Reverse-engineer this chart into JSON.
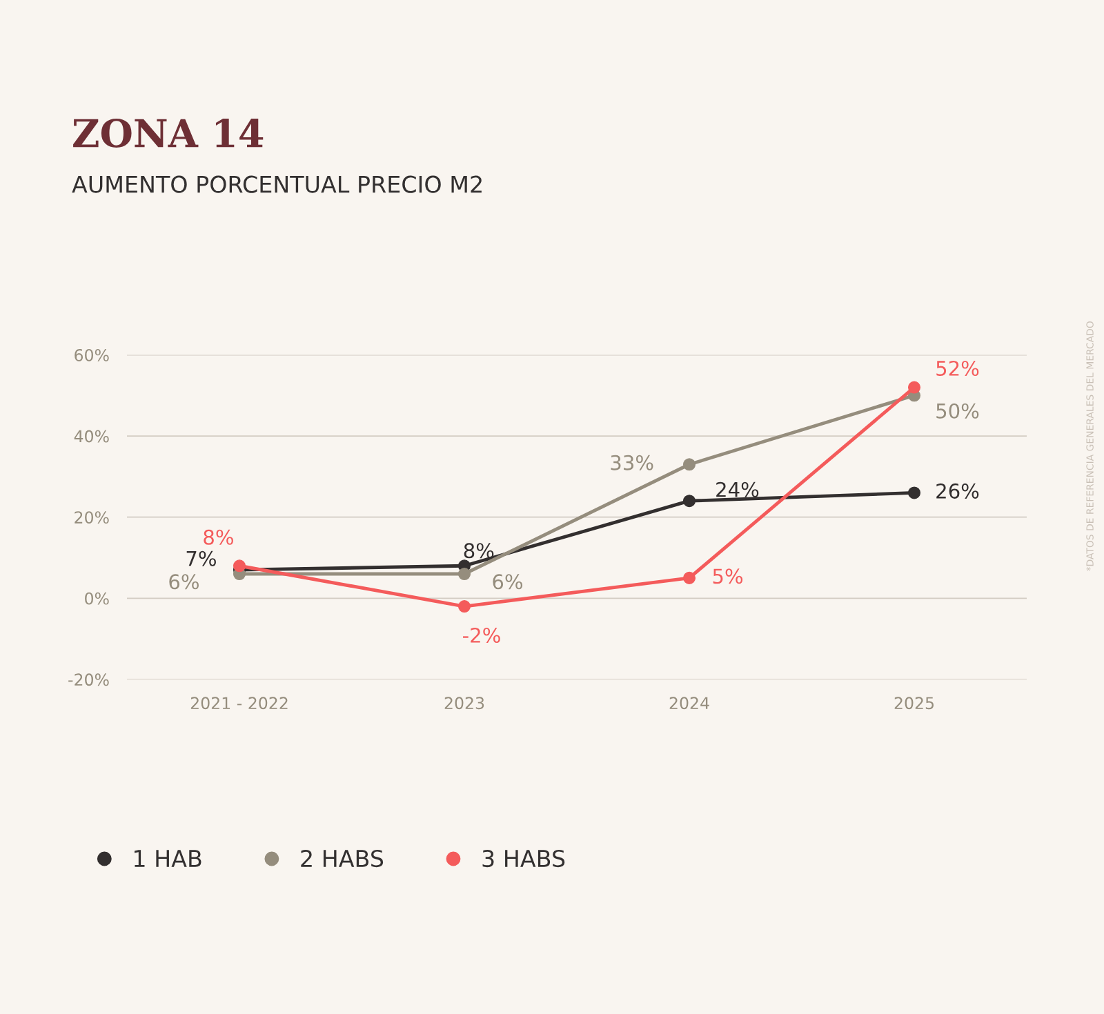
{
  "chart_data": {
    "type": "line",
    "title": "ZONA 14",
    "subtitle": "AUMENTO PORCENTUAL PRECIO M2",
    "categories": [
      "2021 - 2022",
      "2023",
      "2024",
      "2025"
    ],
    "series": [
      {
        "name": "1 HAB",
        "color": "#332f2f",
        "values": [
          7,
          8,
          24,
          26
        ],
        "value_labels": [
          "7%",
          "8%",
          "24%",
          "26%"
        ]
      },
      {
        "name": "2 HABS",
        "color": "#958d7d",
        "values": [
          6,
          6,
          33,
          50
        ],
        "value_labels": [
          "6%",
          "6%",
          "33%",
          "50%"
        ]
      },
      {
        "name": "3 HABS",
        "color": "#f45b5b",
        "values": [
          8,
          -2,
          5,
          52
        ],
        "value_labels": [
          "8%",
          "-2%",
          "5%",
          "52%"
        ]
      }
    ],
    "ylim": [
      -20,
      60
    ],
    "yticks": [
      {
        "value": -20,
        "label": "-20%"
      },
      {
        "value": 0,
        "label": "0%"
      },
      {
        "value": 20,
        "label": "20%"
      },
      {
        "value": 40,
        "label": "40%"
      },
      {
        "value": 60,
        "label": "60%"
      }
    ],
    "grid": "y",
    "legend": "bottom left",
    "marker": "circle",
    "line_style": "solid",
    "annotations": [
      "*DATOS DE REFERENCIA GENERALES DEL MERCADO"
    ]
  }
}
